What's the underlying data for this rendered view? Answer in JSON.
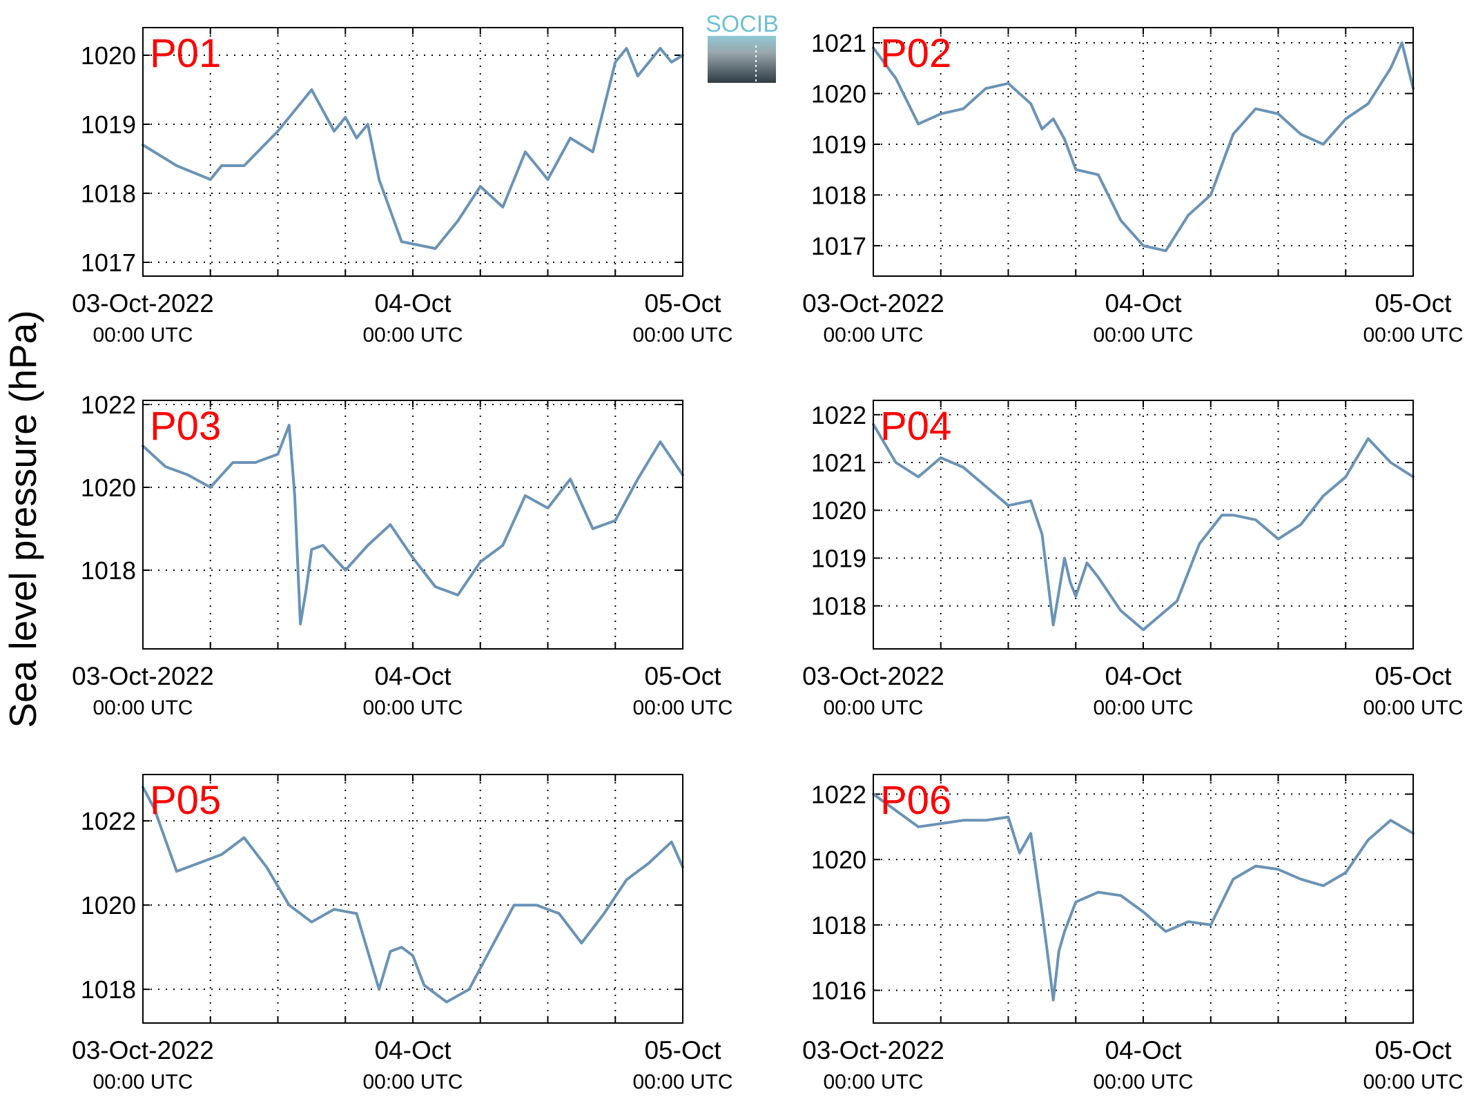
{
  "figure": {
    "ylabel": "Sea level pressure (hPa)",
    "logo_text": "SOCIB",
    "line_color": "#6a93b6",
    "label_color": "#ff0000"
  },
  "chart_data": [
    {
      "type": "line",
      "title": "P01",
      "x_range": [
        "2022-10-03 00:00",
        "2022-10-05 00:00"
      ],
      "x_ticks": [
        {
          "date": "2022-10-03 00:00",
          "line1": "03-Oct-2022",
          "line2": "00:00 UTC"
        },
        {
          "date": "2022-10-04 00:00",
          "line1": "04-Oct",
          "line2": "00:00 UTC"
        },
        {
          "date": "2022-10-05 00:00",
          "line1": "05-Oct",
          "line2": "00:00 UTC"
        }
      ],
      "ylim": [
        1016.8,
        1020.4
      ],
      "yticks": [
        1017,
        1018,
        1019,
        1020
      ],
      "grid": true,
      "series": [
        {
          "x": [
            "2022-10-03 00:00",
            "2022-10-03 03:00",
            "2022-10-03 06:00",
            "2022-10-03 07:00",
            "2022-10-03 09:00",
            "2022-10-03 12:00",
            "2022-10-03 15:00",
            "2022-10-03 17:00",
            "2022-10-03 18:00",
            "2022-10-03 19:00",
            "2022-10-03 20:00",
            "2022-10-03 21:00",
            "2022-10-03 23:00",
            "2022-10-04 02:00",
            "2022-10-04 04:00",
            "2022-10-04 06:00",
            "2022-10-04 08:00",
            "2022-10-04 10:00",
            "2022-10-04 12:00",
            "2022-10-04 14:00",
            "2022-10-04 16:00",
            "2022-10-04 18:00",
            "2022-10-04 19:00",
            "2022-10-04 20:00",
            "2022-10-04 22:00",
            "2022-10-04 23:00",
            "2022-10-05 00:00"
          ],
          "y": [
            1018.7,
            1018.4,
            1018.2,
            1018.4,
            1018.4,
            1018.9,
            1019.5,
            1018.9,
            1019.1,
            1018.8,
            1019.0,
            1018.2,
            1017.3,
            1017.2,
            1017.6,
            1018.1,
            1017.8,
            1018.6,
            1018.2,
            1018.8,
            1018.6,
            1019.9,
            1020.1,
            1019.7,
            1020.1,
            1019.9,
            1020.0
          ]
        }
      ]
    },
    {
      "type": "line",
      "title": "P02",
      "x_range": [
        "2022-10-03 00:00",
        "2022-10-05 00:00"
      ],
      "x_ticks": [
        {
          "date": "2022-10-03 00:00",
          "line1": "03-Oct-2022",
          "line2": "00:00 UTC"
        },
        {
          "date": "2022-10-04 00:00",
          "line1": "04-Oct",
          "line2": "00:00 UTC"
        },
        {
          "date": "2022-10-05 00:00",
          "line1": "05-Oct",
          "line2": "00:00 UTC"
        }
      ],
      "ylim": [
        1016.4,
        1021.3
      ],
      "yticks": [
        1017,
        1018,
        1019,
        1020,
        1021
      ],
      "grid": true,
      "series": [
        {
          "x": [
            "2022-10-03 00:00",
            "2022-10-03 02:00",
            "2022-10-03 04:00",
            "2022-10-03 06:00",
            "2022-10-03 08:00",
            "2022-10-03 10:00",
            "2022-10-03 12:00",
            "2022-10-03 14:00",
            "2022-10-03 15:00",
            "2022-10-03 16:00",
            "2022-10-03 17:00",
            "2022-10-03 18:00",
            "2022-10-03 20:00",
            "2022-10-03 22:00",
            "2022-10-04 00:00",
            "2022-10-04 02:00",
            "2022-10-04 04:00",
            "2022-10-04 06:00",
            "2022-10-04 08:00",
            "2022-10-04 10:00",
            "2022-10-04 12:00",
            "2022-10-04 14:00",
            "2022-10-04 16:00",
            "2022-10-04 18:00",
            "2022-10-04 20:00",
            "2022-10-04 22:00",
            "2022-10-04 23:00",
            "2022-10-05 00:00"
          ],
          "y": [
            1020.9,
            1020.3,
            1019.4,
            1019.6,
            1019.7,
            1020.1,
            1020.2,
            1019.8,
            1019.3,
            1019.5,
            1019.1,
            1018.5,
            1018.4,
            1017.5,
            1017.0,
            1016.9,
            1017.6,
            1018.0,
            1019.2,
            1019.7,
            1019.6,
            1019.2,
            1019.0,
            1019.5,
            1019.8,
            1020.5,
            1021.0,
            1020.1
          ]
        }
      ]
    },
    {
      "type": "line",
      "title": "P03",
      "x_range": [
        "2022-10-03 00:00",
        "2022-10-05 00:00"
      ],
      "x_ticks": [
        {
          "date": "2022-10-03 00:00",
          "line1": "03-Oct-2022",
          "line2": "00:00 UTC"
        },
        {
          "date": "2022-10-04 00:00",
          "line1": "04-Oct",
          "line2": "00:00 UTC"
        },
        {
          "date": "2022-10-05 00:00",
          "line1": "05-Oct",
          "line2": "00:00 UTC"
        }
      ],
      "ylim": [
        1016.1,
        1022.1
      ],
      "yticks": [
        1018,
        1020,
        1022
      ],
      "grid": true,
      "series": [
        {
          "x": [
            "2022-10-03 00:00",
            "2022-10-03 02:00",
            "2022-10-03 04:00",
            "2022-10-03 06:00",
            "2022-10-03 08:00",
            "2022-10-03 10:00",
            "2022-10-03 12:00",
            "2022-10-03 13:00",
            "2022-10-03 13:30",
            "2022-10-03 14:00",
            "2022-10-03 14:30",
            "2022-10-03 15:00",
            "2022-10-03 16:00",
            "2022-10-03 18:00",
            "2022-10-03 20:00",
            "2022-10-03 22:00",
            "2022-10-04 00:00",
            "2022-10-04 02:00",
            "2022-10-04 04:00",
            "2022-10-04 06:00",
            "2022-10-04 08:00",
            "2022-10-04 10:00",
            "2022-10-04 12:00",
            "2022-10-04 14:00",
            "2022-10-04 16:00",
            "2022-10-04 18:00",
            "2022-10-04 20:00",
            "2022-10-04 22:00",
            "2022-10-05 00:00"
          ],
          "y": [
            1021.0,
            1020.5,
            1020.3,
            1020.0,
            1020.6,
            1020.6,
            1020.8,
            1021.5,
            1019.8,
            1016.7,
            1017.5,
            1018.5,
            1018.6,
            1018.0,
            1018.6,
            1019.1,
            1018.3,
            1017.6,
            1017.4,
            1018.2,
            1018.6,
            1019.8,
            1019.5,
            1020.2,
            1019.0,
            1019.2,
            1020.2,
            1021.1,
            1020.3
          ]
        }
      ]
    },
    {
      "type": "line",
      "title": "P04",
      "x_range": [
        "2022-10-03 00:00",
        "2022-10-05 00:00"
      ],
      "x_ticks": [
        {
          "date": "2022-10-03 00:00",
          "line1": "03-Oct-2022",
          "line2": "00:00 UTC"
        },
        {
          "date": "2022-10-04 00:00",
          "line1": "04-Oct",
          "line2": "00:00 UTC"
        },
        {
          "date": "2022-10-05 00:00",
          "line1": "05-Oct",
          "line2": "00:00 UTC"
        }
      ],
      "ylim": [
        1017.1,
        1022.3
      ],
      "yticks": [
        1018,
        1019,
        1020,
        1021,
        1022
      ],
      "grid": true,
      "series": [
        {
          "x": [
            "2022-10-03 00:00",
            "2022-10-03 02:00",
            "2022-10-03 04:00",
            "2022-10-03 06:00",
            "2022-10-03 08:00",
            "2022-10-03 10:00",
            "2022-10-03 12:00",
            "2022-10-03 14:00",
            "2022-10-03 15:00",
            "2022-10-03 16:00",
            "2022-10-03 17:00",
            "2022-10-03 17:30",
            "2022-10-03 18:00",
            "2022-10-03 19:00",
            "2022-10-03 20:00",
            "2022-10-03 22:00",
            "2022-10-04 00:00",
            "2022-10-04 02:00",
            "2022-10-04 03:00",
            "2022-10-04 05:00",
            "2022-10-04 07:00",
            "2022-10-04 08:00",
            "2022-10-04 10:00",
            "2022-10-04 12:00",
            "2022-10-04 14:00",
            "2022-10-04 16:00",
            "2022-10-04 18:00",
            "2022-10-04 20:00",
            "2022-10-04 22:00",
            "2022-10-05 00:00"
          ],
          "y": [
            1021.8,
            1021.0,
            1020.7,
            1021.1,
            1020.9,
            1020.5,
            1020.1,
            1020.2,
            1019.5,
            1017.6,
            1019.0,
            1018.5,
            1018.2,
            1018.9,
            1018.6,
            1017.9,
            1017.5,
            1017.9,
            1018.1,
            1019.3,
            1019.9,
            1019.9,
            1019.8,
            1019.4,
            1019.7,
            1020.3,
            1020.7,
            1021.5,
            1021.0,
            1020.7
          ]
        }
      ]
    },
    {
      "type": "line",
      "title": "P05",
      "x_range": [
        "2022-10-03 00:00",
        "2022-10-05 00:00"
      ],
      "x_ticks": [
        {
          "date": "2022-10-03 00:00",
          "line1": "03-Oct-2022",
          "line2": "00:00 UTC"
        },
        {
          "date": "2022-10-04 00:00",
          "line1": "04-Oct",
          "line2": "00:00 UTC"
        },
        {
          "date": "2022-10-05 00:00",
          "line1": "05-Oct",
          "line2": "00:00 UTC"
        }
      ],
      "ylim": [
        1017.2,
        1023.1
      ],
      "yticks": [
        1018,
        1020,
        1022
      ],
      "grid": true,
      "series": [
        {
          "x": [
            "2022-10-03 00:00",
            "2022-10-03 01:00",
            "2022-10-03 03:00",
            "2022-10-03 05:00",
            "2022-10-03 07:00",
            "2022-10-03 09:00",
            "2022-10-03 11:00",
            "2022-10-03 13:00",
            "2022-10-03 15:00",
            "2022-10-03 17:00",
            "2022-10-03 19:00",
            "2022-10-03 21:00",
            "2022-10-03 22:00",
            "2022-10-03 23:00",
            "2022-10-04 00:00",
            "2022-10-04 01:00",
            "2022-10-04 03:00",
            "2022-10-04 05:00",
            "2022-10-04 07:00",
            "2022-10-04 09:00",
            "2022-10-04 11:00",
            "2022-10-04 13:00",
            "2022-10-04 15:00",
            "2022-10-04 17:00",
            "2022-10-04 19:00",
            "2022-10-04 21:00",
            "2022-10-04 23:00",
            "2022-10-05 00:00"
          ],
          "y": [
            1022.8,
            1022.3,
            1020.8,
            1021.0,
            1021.2,
            1021.6,
            1020.9,
            1020.0,
            1019.6,
            1019.9,
            1019.8,
            1018.0,
            1018.9,
            1019.0,
            1018.8,
            1018.1,
            1017.7,
            1018.0,
            1019.0,
            1020.0,
            1020.0,
            1019.8,
            1019.1,
            1019.8,
            1020.6,
            1021.0,
            1021.5,
            1020.9
          ]
        }
      ]
    },
    {
      "type": "line",
      "title": "P06",
      "x_range": [
        "2022-10-03 00:00",
        "2022-10-05 00:00"
      ],
      "x_ticks": [
        {
          "date": "2022-10-03 00:00",
          "line1": "03-Oct-2022",
          "line2": "00:00 UTC"
        },
        {
          "date": "2022-10-04 00:00",
          "line1": "04-Oct",
          "line2": "00:00 UTC"
        },
        {
          "date": "2022-10-05 00:00",
          "line1": "05-Oct",
          "line2": "00:00 UTC"
        }
      ],
      "ylim": [
        1015.0,
        1022.6
      ],
      "yticks": [
        1016,
        1018,
        1020,
        1022
      ],
      "grid": true,
      "series": [
        {
          "x": [
            "2022-10-03 00:00",
            "2022-10-03 02:00",
            "2022-10-03 04:00",
            "2022-10-03 06:00",
            "2022-10-03 08:00",
            "2022-10-03 10:00",
            "2022-10-03 12:00",
            "2022-10-03 13:00",
            "2022-10-03 14:00",
            "2022-10-03 15:00",
            "2022-10-03 15:30",
            "2022-10-03 16:00",
            "2022-10-03 16:30",
            "2022-10-03 17:00",
            "2022-10-03 18:00",
            "2022-10-03 20:00",
            "2022-10-03 22:00",
            "2022-10-04 00:00",
            "2022-10-04 02:00",
            "2022-10-04 04:00",
            "2022-10-04 06:00",
            "2022-10-04 08:00",
            "2022-10-04 10:00",
            "2022-10-04 12:00",
            "2022-10-04 14:00",
            "2022-10-04 16:00",
            "2022-10-04 18:00",
            "2022-10-04 20:00",
            "2022-10-04 22:00",
            "2022-10-05 00:00"
          ],
          "y": [
            1022.0,
            1021.5,
            1021.0,
            1021.1,
            1021.2,
            1021.2,
            1021.3,
            1020.2,
            1020.8,
            1018.4,
            1017.1,
            1015.7,
            1017.2,
            1017.8,
            1018.7,
            1019.0,
            1018.9,
            1018.4,
            1017.8,
            1018.1,
            1018.0,
            1019.4,
            1019.8,
            1019.7,
            1019.4,
            1019.2,
            1019.6,
            1020.6,
            1021.2,
            1020.8
          ]
        }
      ]
    }
  ]
}
